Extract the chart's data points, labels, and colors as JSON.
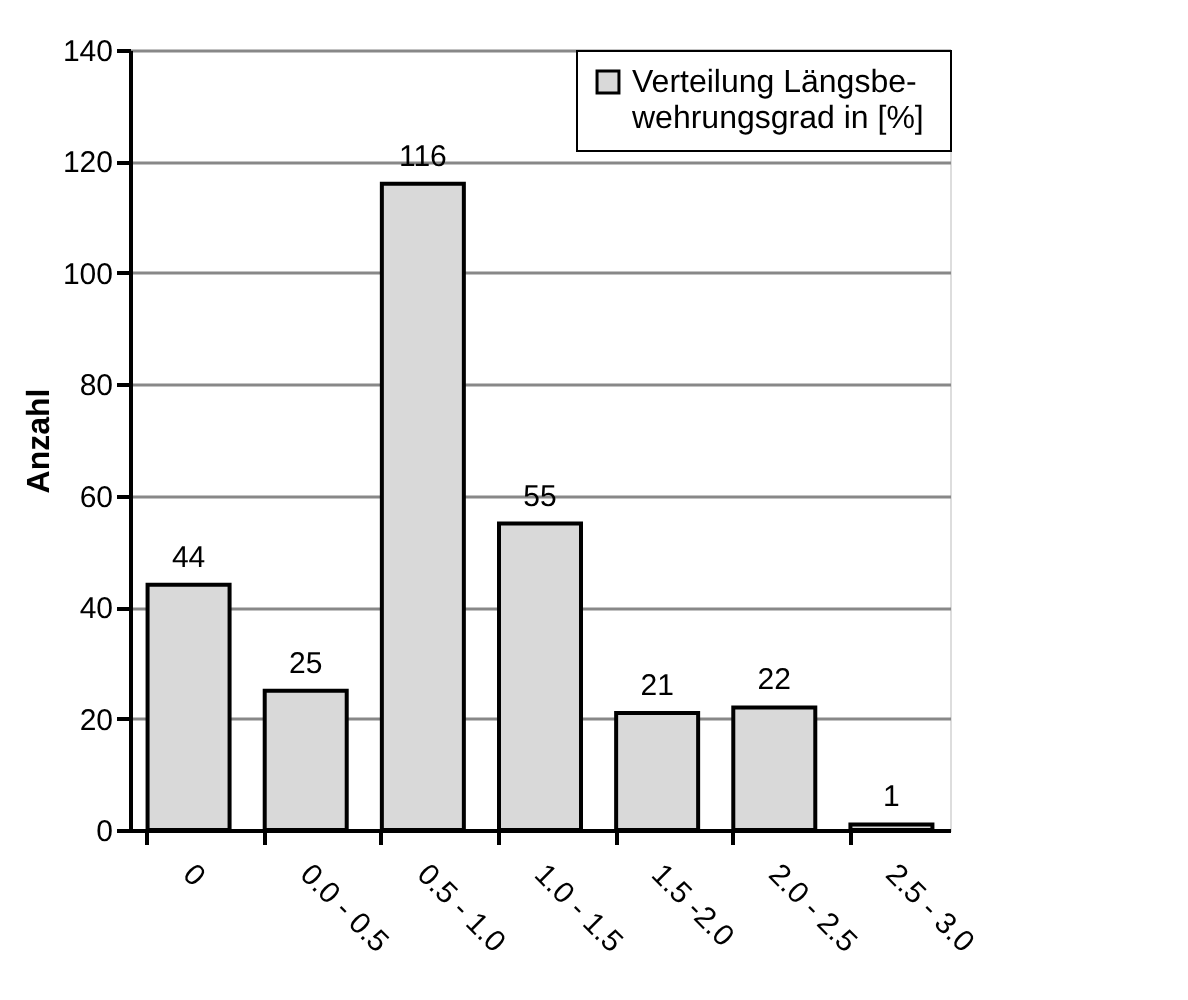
{
  "chart_data": {
    "type": "bar",
    "ylabel": "Anzahl",
    "categories": [
      "0",
      "0.0 - 0.5",
      "0.5 - 1.0",
      "1.0 - 1.5",
      "1.5 -2.0",
      "2.0 - 2.5",
      "2.5 - 3.0"
    ],
    "series": [
      {
        "name": "Verteilung Längsbe-\nwehrungsgrad in  [%]",
        "color": "#d9d9d9",
        "values": [
          44,
          25,
          116,
          55,
          21,
          22,
          1
        ]
      }
    ],
    "ylim": [
      0,
      140
    ],
    "yticks": [
      0,
      20,
      40,
      60,
      80,
      100,
      120,
      140
    ],
    "grid": "y",
    "legend": "top right",
    "data_labels": true
  }
}
